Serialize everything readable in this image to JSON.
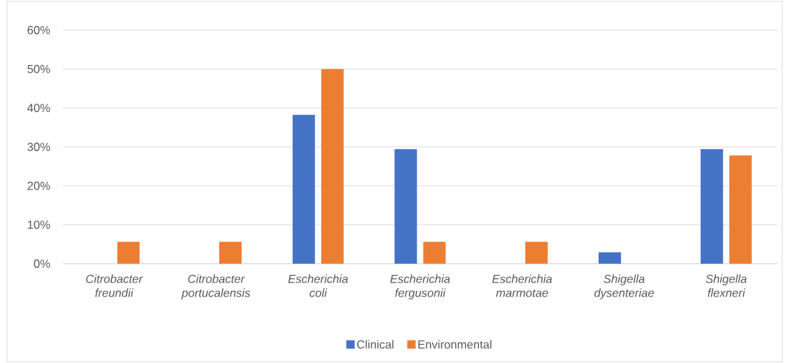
{
  "chart_data": {
    "type": "bar",
    "categories": [
      "Citrobacter freundii",
      "Citrobacter portucalensis",
      "Escherichia coli",
      "Escherichia fergusonii",
      "Escherichia marmotae",
      "Shigella dysenteriae",
      "Shigella flexneri"
    ],
    "series": [
      {
        "name": "Clinical",
        "color": "#4472c4",
        "values": [
          null,
          null,
          38.2,
          29.4,
          null,
          2.9,
          29.4
        ]
      },
      {
        "name": "Environmental",
        "color": "#ed7d31",
        "values": [
          5.6,
          5.6,
          50,
          5.6,
          5.6,
          null,
          27.8
        ]
      }
    ],
    "ylim": [
      0,
      60
    ],
    "yticks": [
      {
        "value": 0,
        "label": "0%"
      },
      {
        "value": 10,
        "label": "10%"
      },
      {
        "value": 20,
        "label": "20%"
      },
      {
        "value": 30,
        "label": "30%"
      },
      {
        "value": 40,
        "label": "40%"
      },
      {
        "value": 50,
        "label": "50%"
      },
      {
        "value": 60,
        "label": "60%"
      }
    ],
    "grid": "y",
    "legend": "bottom"
  }
}
